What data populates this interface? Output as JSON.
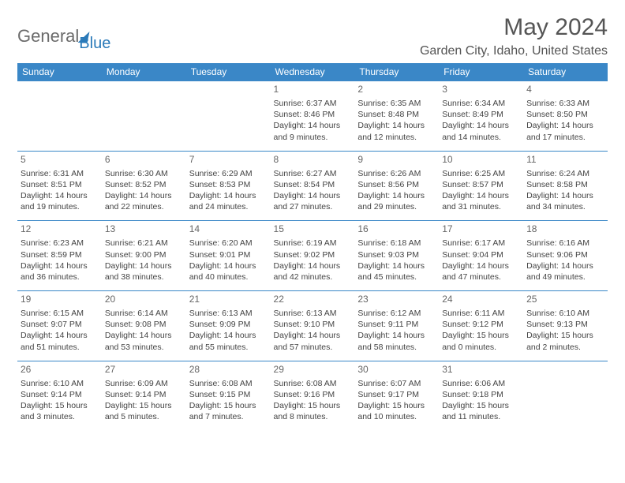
{
  "logo": {
    "part1": "General",
    "part2": "Blue"
  },
  "title": "May 2024",
  "location": "Garden City, Idaho, United States",
  "weekdays": [
    "Sunday",
    "Monday",
    "Tuesday",
    "Wednesday",
    "Thursday",
    "Friday",
    "Saturday"
  ],
  "colors": {
    "header_bg": "#3a87c7",
    "header_text": "#ffffff",
    "border": "#3a87c7",
    "title_text": "#555555",
    "body_text": "#444444",
    "logo_gray": "#6b6b6b",
    "logo_blue": "#2a7ab9"
  },
  "typography": {
    "title_fontsize": 30,
    "location_fontsize": 16,
    "weekday_fontsize": 12,
    "daynum_fontsize": 12,
    "info_fontsize": 10.5
  },
  "weeks": [
    [
      null,
      null,
      null,
      {
        "n": "1",
        "sr": "Sunrise: 6:37 AM",
        "ss": "Sunset: 8:46 PM",
        "dl": "Daylight: 14 hours and 9 minutes."
      },
      {
        "n": "2",
        "sr": "Sunrise: 6:35 AM",
        "ss": "Sunset: 8:48 PM",
        "dl": "Daylight: 14 hours and 12 minutes."
      },
      {
        "n": "3",
        "sr": "Sunrise: 6:34 AM",
        "ss": "Sunset: 8:49 PM",
        "dl": "Daylight: 14 hours and 14 minutes."
      },
      {
        "n": "4",
        "sr": "Sunrise: 6:33 AM",
        "ss": "Sunset: 8:50 PM",
        "dl": "Daylight: 14 hours and 17 minutes."
      }
    ],
    [
      {
        "n": "5",
        "sr": "Sunrise: 6:31 AM",
        "ss": "Sunset: 8:51 PM",
        "dl": "Daylight: 14 hours and 19 minutes."
      },
      {
        "n": "6",
        "sr": "Sunrise: 6:30 AM",
        "ss": "Sunset: 8:52 PM",
        "dl": "Daylight: 14 hours and 22 minutes."
      },
      {
        "n": "7",
        "sr": "Sunrise: 6:29 AM",
        "ss": "Sunset: 8:53 PM",
        "dl": "Daylight: 14 hours and 24 minutes."
      },
      {
        "n": "8",
        "sr": "Sunrise: 6:27 AM",
        "ss": "Sunset: 8:54 PM",
        "dl": "Daylight: 14 hours and 27 minutes."
      },
      {
        "n": "9",
        "sr": "Sunrise: 6:26 AM",
        "ss": "Sunset: 8:56 PM",
        "dl": "Daylight: 14 hours and 29 minutes."
      },
      {
        "n": "10",
        "sr": "Sunrise: 6:25 AM",
        "ss": "Sunset: 8:57 PM",
        "dl": "Daylight: 14 hours and 31 minutes."
      },
      {
        "n": "11",
        "sr": "Sunrise: 6:24 AM",
        "ss": "Sunset: 8:58 PM",
        "dl": "Daylight: 14 hours and 34 minutes."
      }
    ],
    [
      {
        "n": "12",
        "sr": "Sunrise: 6:23 AM",
        "ss": "Sunset: 8:59 PM",
        "dl": "Daylight: 14 hours and 36 minutes."
      },
      {
        "n": "13",
        "sr": "Sunrise: 6:21 AM",
        "ss": "Sunset: 9:00 PM",
        "dl": "Daylight: 14 hours and 38 minutes."
      },
      {
        "n": "14",
        "sr": "Sunrise: 6:20 AM",
        "ss": "Sunset: 9:01 PM",
        "dl": "Daylight: 14 hours and 40 minutes."
      },
      {
        "n": "15",
        "sr": "Sunrise: 6:19 AM",
        "ss": "Sunset: 9:02 PM",
        "dl": "Daylight: 14 hours and 42 minutes."
      },
      {
        "n": "16",
        "sr": "Sunrise: 6:18 AM",
        "ss": "Sunset: 9:03 PM",
        "dl": "Daylight: 14 hours and 45 minutes."
      },
      {
        "n": "17",
        "sr": "Sunrise: 6:17 AM",
        "ss": "Sunset: 9:04 PM",
        "dl": "Daylight: 14 hours and 47 minutes."
      },
      {
        "n": "18",
        "sr": "Sunrise: 6:16 AM",
        "ss": "Sunset: 9:06 PM",
        "dl": "Daylight: 14 hours and 49 minutes."
      }
    ],
    [
      {
        "n": "19",
        "sr": "Sunrise: 6:15 AM",
        "ss": "Sunset: 9:07 PM",
        "dl": "Daylight: 14 hours and 51 minutes."
      },
      {
        "n": "20",
        "sr": "Sunrise: 6:14 AM",
        "ss": "Sunset: 9:08 PM",
        "dl": "Daylight: 14 hours and 53 minutes."
      },
      {
        "n": "21",
        "sr": "Sunrise: 6:13 AM",
        "ss": "Sunset: 9:09 PM",
        "dl": "Daylight: 14 hours and 55 minutes."
      },
      {
        "n": "22",
        "sr": "Sunrise: 6:13 AM",
        "ss": "Sunset: 9:10 PM",
        "dl": "Daylight: 14 hours and 57 minutes."
      },
      {
        "n": "23",
        "sr": "Sunrise: 6:12 AM",
        "ss": "Sunset: 9:11 PM",
        "dl": "Daylight: 14 hours and 58 minutes."
      },
      {
        "n": "24",
        "sr": "Sunrise: 6:11 AM",
        "ss": "Sunset: 9:12 PM",
        "dl": "Daylight: 15 hours and 0 minutes."
      },
      {
        "n": "25",
        "sr": "Sunrise: 6:10 AM",
        "ss": "Sunset: 9:13 PM",
        "dl": "Daylight: 15 hours and 2 minutes."
      }
    ],
    [
      {
        "n": "26",
        "sr": "Sunrise: 6:10 AM",
        "ss": "Sunset: 9:14 PM",
        "dl": "Daylight: 15 hours and 3 minutes."
      },
      {
        "n": "27",
        "sr": "Sunrise: 6:09 AM",
        "ss": "Sunset: 9:14 PM",
        "dl": "Daylight: 15 hours and 5 minutes."
      },
      {
        "n": "28",
        "sr": "Sunrise: 6:08 AM",
        "ss": "Sunset: 9:15 PM",
        "dl": "Daylight: 15 hours and 7 minutes."
      },
      {
        "n": "29",
        "sr": "Sunrise: 6:08 AM",
        "ss": "Sunset: 9:16 PM",
        "dl": "Daylight: 15 hours and 8 minutes."
      },
      {
        "n": "30",
        "sr": "Sunrise: 6:07 AM",
        "ss": "Sunset: 9:17 PM",
        "dl": "Daylight: 15 hours and 10 minutes."
      },
      {
        "n": "31",
        "sr": "Sunrise: 6:06 AM",
        "ss": "Sunset: 9:18 PM",
        "dl": "Daylight: 15 hours and 11 minutes."
      },
      null
    ]
  ]
}
